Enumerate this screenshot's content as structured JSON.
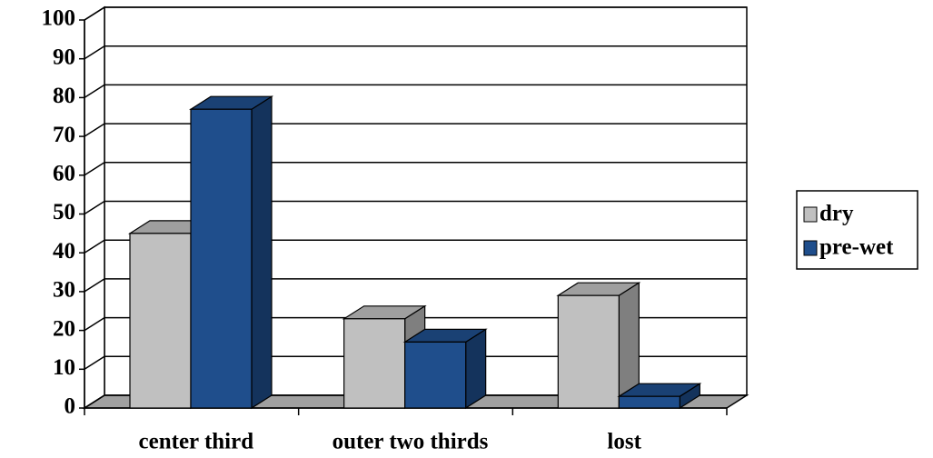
{
  "chart_data": {
    "type": "bar3d",
    "categories": [
      "center third",
      "outer two thirds",
      "lost"
    ],
    "series": [
      {
        "name": "dry",
        "color": "#c0c0c0",
        "values": [
          45,
          23,
          29
        ]
      },
      {
        "name": "pre-wet",
        "color": "#1f4e8c",
        "values": [
          77,
          17,
          3
        ]
      }
    ],
    "ylim": [
      0,
      100
    ],
    "yticks": [
      0,
      10,
      20,
      30,
      40,
      50,
      60,
      70,
      80,
      90,
      100
    ],
    "grid": true,
    "legend": "right"
  }
}
